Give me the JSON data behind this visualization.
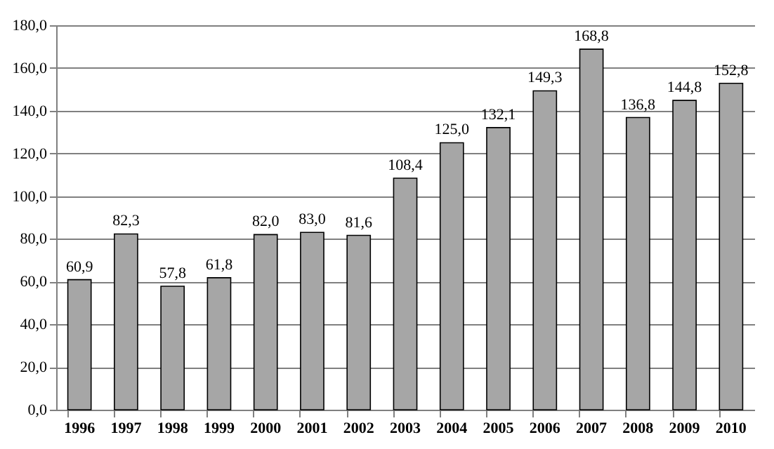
{
  "chart_data": {
    "type": "bar",
    "categories": [
      "1996",
      "1997",
      "1998",
      "1999",
      "2000",
      "2001",
      "2002",
      "2003",
      "2004",
      "2005",
      "2006",
      "2007",
      "2008",
      "2009",
      "2010"
    ],
    "values": [
      60.9,
      82.3,
      57.8,
      61.8,
      82.0,
      83.0,
      81.6,
      108.4,
      125.0,
      132.1,
      149.3,
      168.8,
      136.8,
      144.8,
      152.8
    ],
    "value_labels": [
      "60,9",
      "82,3",
      "57,8",
      "61,8",
      "82,0",
      "83,0",
      "81,6",
      "108,4",
      "125,0",
      "132,1",
      "149,3",
      "168,8",
      "136,8",
      "144,8",
      "152,8"
    ],
    "color": "#a6a6a6",
    "ylim": [
      0,
      180
    ],
    "yticks": [
      {
        "value": 0,
        "label": "0,0"
      },
      {
        "value": 20,
        "label": "20,0"
      },
      {
        "value": 40,
        "label": "40,0"
      },
      {
        "value": 60,
        "label": "60,0"
      },
      {
        "value": 80,
        "label": "80,0"
      },
      {
        "value": 100,
        "label": "100,0"
      },
      {
        "value": 120,
        "label": "120,0"
      },
      {
        "value": 140,
        "label": "140,0"
      },
      {
        "value": 160,
        "label": "160,0"
      },
      {
        "value": 180,
        "label": "180,0"
      }
    ],
    "grid": true
  }
}
